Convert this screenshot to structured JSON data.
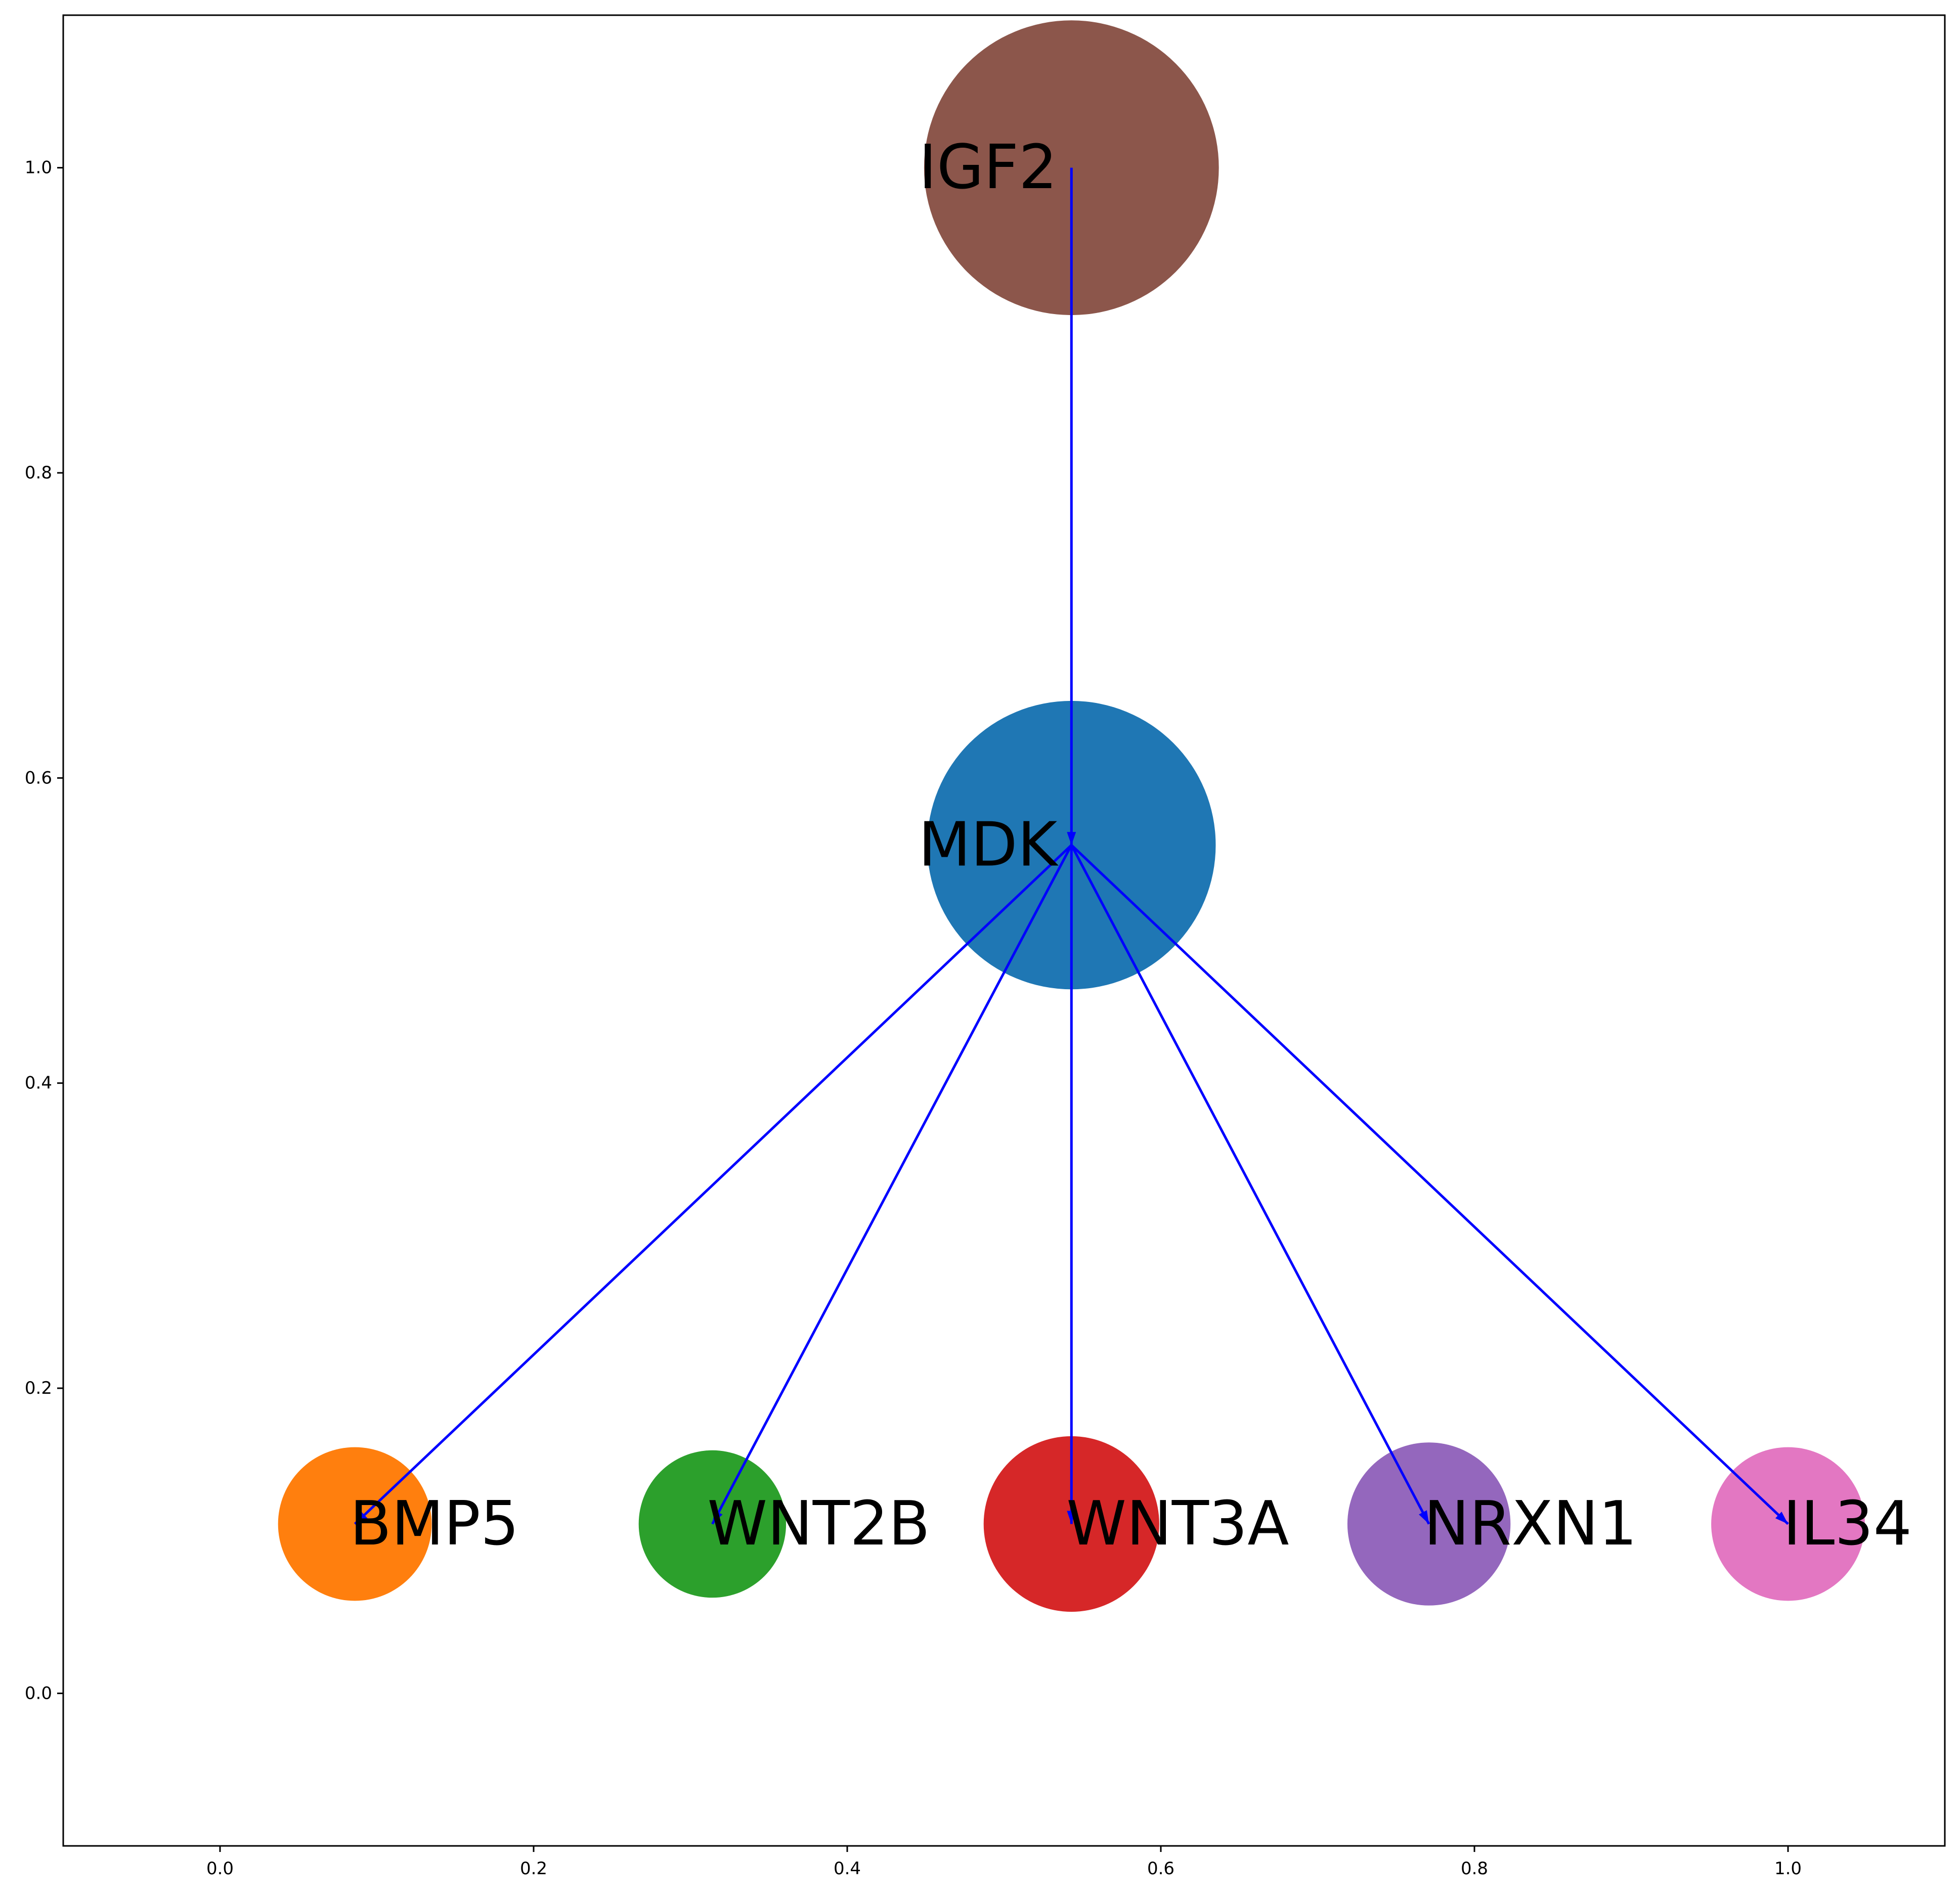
{
  "chart_data": {
    "type": "network",
    "title": "",
    "xlabel": "",
    "ylabel": "",
    "xlim": [
      -0.1,
      1.1
    ],
    "ylim": [
      -0.1,
      1.1
    ],
    "x_ticks": [
      "0.0",
      "0.2",
      "0.4",
      "0.6",
      "0.8",
      "1.0"
    ],
    "y_ticks": [
      "0.0",
      "0.2",
      "0.4",
      "0.6",
      "0.8",
      "1.0"
    ],
    "grid": false,
    "edge_color": "#0000ff",
    "nodes": [
      {
        "id": "IGF2",
        "label": "IGF2",
        "x": 0.543,
        "y": 1.0,
        "radius": 0.094,
        "color": "#8c564b"
      },
      {
        "id": "MDK",
        "label": "MDK",
        "x": 0.543,
        "y": 0.556,
        "radius": 0.092,
        "color": "#1f77b4"
      },
      {
        "id": "BMP5",
        "label": "BMP5",
        "x": 0.086,
        "y": 0.111,
        "radius": 0.049,
        "color": "#ff7f0e"
      },
      {
        "id": "WNT2B",
        "label": "WNT2B",
        "x": 0.314,
        "y": 0.111,
        "radius": 0.047,
        "color": "#2ca02c"
      },
      {
        "id": "WNT3A",
        "label": "WNT3A",
        "x": 0.543,
        "y": 0.111,
        "radius": 0.056,
        "color": "#d62728"
      },
      {
        "id": "NRXN1",
        "label": "NRXN1",
        "x": 0.771,
        "y": 0.111,
        "radius": 0.052,
        "color": "#9467bd"
      },
      {
        "id": "IL34",
        "label": "IL34",
        "x": 1.0,
        "y": 0.111,
        "radius": 0.049,
        "color": "#e377c2"
      }
    ],
    "edges": [
      {
        "from": "IGF2",
        "to": "MDK"
      },
      {
        "from": "MDK",
        "to": "BMP5"
      },
      {
        "from": "MDK",
        "to": "WNT2B"
      },
      {
        "from": "MDK",
        "to": "WNT3A"
      },
      {
        "from": "MDK",
        "to": "NRXN1"
      },
      {
        "from": "MDK",
        "to": "IL34"
      }
    ]
  }
}
